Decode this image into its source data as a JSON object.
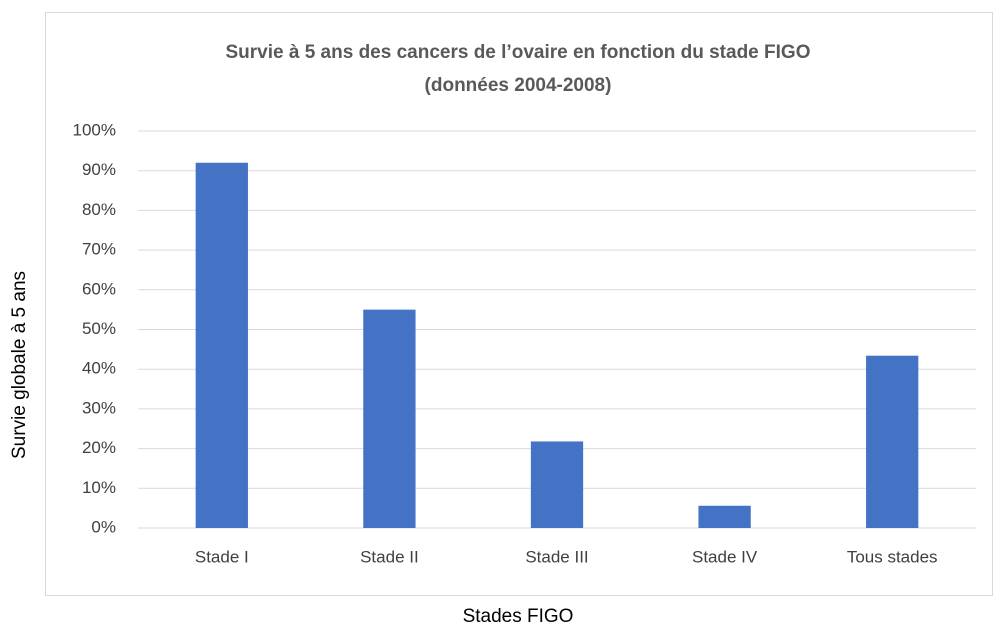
{
  "chart_data": {
    "type": "bar",
    "title": "Survie à 5 ans des cancers de l’ovaire en fonction du stade FIGO",
    "subtitle": "(données 2004-2008)",
    "x_label": "Stades FIGO",
    "y_label": "Survie globale à 5 ans",
    "categories": [
      "Stade I",
      "Stade II",
      "Stade III",
      "Stade IV",
      "Tous stades"
    ],
    "values": [
      92,
      55,
      21.8,
      5.6,
      43.4
    ],
    "color": "#4472c4",
    "ylim": [
      0,
      100
    ],
    "yticks": [
      {
        "value": 0,
        "label": "0%"
      },
      {
        "value": 10,
        "label": "10%"
      },
      {
        "value": 20,
        "label": "20%"
      },
      {
        "value": 30,
        "label": "30%"
      },
      {
        "value": 40,
        "label": "40%"
      },
      {
        "value": 50,
        "label": "50%"
      },
      {
        "value": 60,
        "label": "60%"
      },
      {
        "value": 70,
        "label": "70%"
      },
      {
        "value": 80,
        "label": "80%"
      },
      {
        "value": 90,
        "label": "90%"
      },
      {
        "value": 100,
        "label": "100%"
      }
    ],
    "grid": true
  }
}
